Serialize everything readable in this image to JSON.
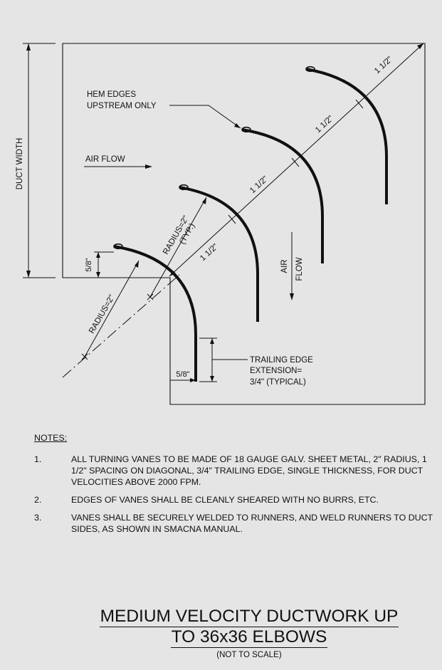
{
  "diagram": {
    "labels": {
      "duct_width": "DUCT WIDTH",
      "hem_edges_line1": "HEM EDGES",
      "hem_edges_line2": "UPSTREAM ONLY",
      "air_flow_horizontal": "AIR FLOW",
      "air_flow_vertical_1": "AIR",
      "air_flow_vertical_2": "FLOW",
      "radius_typ_1": "RADIUS=2\"",
      "radius_typ_2": "(TYP.)",
      "radius_lower": "RADIUS=2\"",
      "spacing_1": "1 1/2\"",
      "spacing_2": "1 1/2\"",
      "spacing_3": "1 1/2\"",
      "spacing_4": "1 1/2\"",
      "hem_offset": "5/8\"",
      "trailing_offset": "5/8\"",
      "trailing_edge_1": "TRAILING EDGE",
      "trailing_edge_2": "EXTENSION=",
      "trailing_edge_3": "3/4\" (TYPICAL)"
    }
  },
  "notes": {
    "heading": "NOTES:",
    "items": [
      {
        "number": "1.",
        "text": "ALL TURNING VANES TO BE MADE OF 18 GAUGE GALV. SHEET METAL, 2\" RADIUS, 1 1/2\" SPACING ON DIAGONAL, 3/4\" TRAILING EDGE, SINGLE THICKNESS, FOR DUCT VELOCITIES ABOVE 2000 FPM."
      },
      {
        "number": "2.",
        "text": "EDGES OF VANES SHALL BE CLEANLY SHEARED WITH NO BURRS, ETC."
      },
      {
        "number": "3.",
        "text": "VANES SHALL BE SECURELY WELDED TO RUNNERS, AND WELD RUNNERS TO DUCT SIDES, AS SHOWN IN SMACNA MANUAL."
      }
    ]
  },
  "title": {
    "line1": "MEDIUM VELOCITY DUCTWORK UP",
    "line2": "TO 36x36 ELBOWS",
    "subtitle": "(NOT TO SCALE)"
  }
}
